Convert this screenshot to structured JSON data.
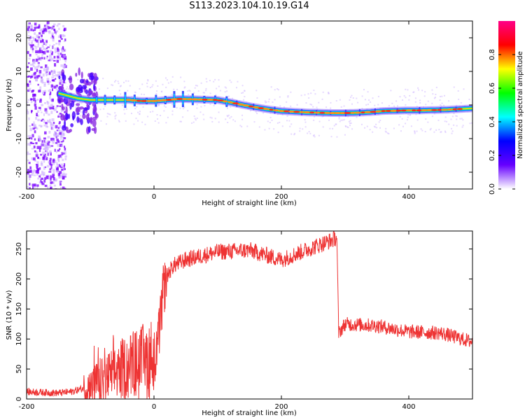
{
  "page": {
    "title": "S113.2023.104.10.19.G14"
  },
  "chart_data": [
    {
      "type": "heatmap",
      "xlabel": "Height of straight line (km)",
      "ylabel": "Frequency (Hz)",
      "xlim": [
        -200,
        500
      ],
      "ylim": [
        -25,
        25
      ],
      "x_ticks": [
        "-200",
        "0",
        "200",
        "400"
      ],
      "y_ticks": [
        "20",
        "10",
        "0",
        "-10",
        "-20"
      ],
      "grid": false,
      "colorbar": {
        "label": "Normalized spectral amplitude",
        "ticks": [
          "0.0",
          "0.2",
          "0.4",
          "0.6",
          "0.8"
        ],
        "range": [
          0,
          1
        ],
        "colors": [
          "#ffffff",
          "#6600ff",
          "#0000ff",
          "#00ffff",
          "#00ff00",
          "#ffff00",
          "#ff0000",
          "#ff0088"
        ]
      },
      "ridge": {
        "x": [
          -160,
          -140,
          -120,
          -100,
          -80,
          -60,
          -40,
          -20,
          0,
          20,
          40,
          60,
          80,
          100,
          120,
          140,
          160,
          180,
          200,
          220,
          240,
          260,
          280,
          300,
          320,
          340,
          360,
          380,
          400,
          420,
          440,
          460,
          480,
          500
        ],
        "frequency_hz": [
          4,
          3,
          2,
          1.5,
          1.5,
          1.5,
          1.5,
          1.2,
          1.2,
          1.5,
          1.8,
          1.7,
          1.6,
          1.5,
          0.8,
          0,
          -0.7,
          -1.3,
          -1.8,
          -2.0,
          -2.2,
          -2.3,
          -2.4,
          -2.4,
          -2.3,
          -2.1,
          -1.8,
          -1.7,
          -1.6,
          -1.6,
          -1.5,
          -1.4,
          -1.2,
          -1.0
        ]
      }
    },
    {
      "type": "line",
      "xlabel": "Height of straight line (km)",
      "ylabel": "SNR (10 * v/v)",
      "xlim": [
        -200,
        500
      ],
      "ylim": [
        0,
        280
      ],
      "x_ticks": [
        "-200",
        "0",
        "200",
        "400"
      ],
      "y_ticks": [
        "0",
        "50",
        "100",
        "150",
        "200",
        "250"
      ],
      "grid": false,
      "series_color": "#ee3333",
      "series": [
        {
          "x": [
            -200,
            -150,
            -130,
            -110,
            -100,
            -80,
            -60,
            -40,
            -20,
            -10,
            0,
            5,
            10,
            15,
            20,
            30,
            50,
            80,
            100,
            150,
            200,
            250,
            280,
            287,
            290,
            300,
            350,
            400,
            450,
            500
          ],
          "values": [
            12,
            10,
            12,
            18,
            22,
            30,
            45,
            55,
            60,
            65,
            70,
            80,
            130,
            180,
            205,
            222,
            232,
            240,
            245,
            248,
            232,
            253,
            265,
            270,
            110,
            125,
            122,
            112,
            110,
            95
          ]
        }
      ]
    }
  ]
}
